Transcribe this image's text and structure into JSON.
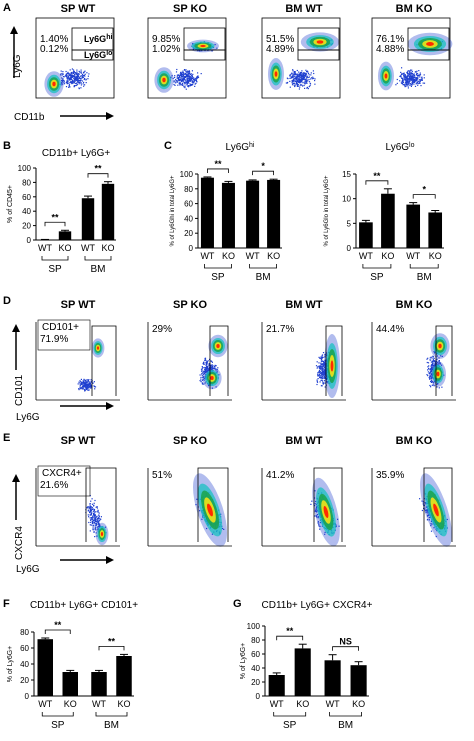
{
  "panels": {
    "A": "A",
    "B": "B",
    "C": "C",
    "D": "D",
    "E": "E",
    "F": "F",
    "G": "G"
  },
  "facs_titles": [
    "SP WT",
    "SP KO",
    "BM WT",
    "BM KO"
  ],
  "row_a": {
    "y_axis": "Ly6G",
    "x_axis": "CD11b",
    "gate_hi": "Ly6G",
    "gate_hi_sup": "hi",
    "gate_lo": "Ly6G",
    "gate_lo_sup": "lo",
    "hi": [
      "1.40%",
      "9.85%",
      "51.5%",
      "76.1%"
    ],
    "lo": [
      "0.12%",
      "1.02%",
      "4.89%",
      "4.88%"
    ]
  },
  "row_d": {
    "y_axis": "CD101",
    "x_axis": "Ly6G",
    "gate_label": "CD101+",
    "pcts": [
      "71.9%",
      "29%",
      "21.7%",
      "44.4%"
    ]
  },
  "row_e": {
    "y_axis": "CXCR4",
    "x_axis": "Ly6G",
    "gate_label": "CXCR4+",
    "pcts": [
      "21.6%",
      "51%",
      "41.2%",
      "35.9%"
    ]
  },
  "colors": {
    "bar": "#000000",
    "dense": "#ff2a00",
    "mid": "#1aa34a",
    "sparse": "#1f3fcf"
  },
  "chart_data": [
    {
      "id": "B",
      "type": "bar",
      "title": "CD11b+ Ly6G+",
      "ylabel": "% of CD45+",
      "categories": [
        "WT",
        "KO",
        "WT",
        "KO"
      ],
      "groups": [
        "SP",
        "BM"
      ],
      "values": [
        0.5,
        12,
        58,
        78
      ],
      "errors": [
        0.3,
        1.5,
        3,
        3
      ],
      "ylim": [
        0,
        100
      ],
      "yticks": [
        "0",
        "20",
        "40",
        "60",
        "80",
        "100"
      ],
      "sig": [
        "**",
        "**"
      ]
    },
    {
      "id": "C1",
      "type": "bar",
      "title": "Ly6G",
      "title_sup": "hi",
      "ylabel": "% of Ly6Ghi in total Ly6G+",
      "categories": [
        "WT",
        "KO",
        "WT",
        "KO"
      ],
      "groups": [
        "SP",
        "BM"
      ],
      "values": [
        95,
        88,
        91,
        92
      ],
      "errors": [
        1,
        2,
        1,
        1
      ],
      "ylim": [
        0,
        100
      ],
      "yticks": [
        "0",
        "20",
        "40",
        "60",
        "80",
        "100"
      ],
      "sig": [
        "**",
        "*"
      ]
    },
    {
      "id": "C2",
      "type": "bar",
      "title": "Ly6G",
      "title_sup": "lo",
      "ylabel": "% of Ly6Glo in total Ly6G+",
      "categories": [
        "WT",
        "KO",
        "WT",
        "KO"
      ],
      "groups": [
        "SP",
        "BM"
      ],
      "values": [
        5.2,
        11,
        8.8,
        7.2
      ],
      "errors": [
        0.4,
        1,
        0.4,
        0.4
      ],
      "ylim": [
        0,
        15
      ],
      "yticks": [
        "0",
        "5",
        "10",
        "15"
      ],
      "sig": [
        "**",
        "*"
      ]
    },
    {
      "id": "F",
      "type": "bar",
      "title": "CD11b+ Ly6G+ CD101+",
      "ylabel": "% of Ly6G+",
      "categories": [
        "WT",
        "KO",
        "WT",
        "KO"
      ],
      "groups": [
        "SP",
        "BM"
      ],
      "values": [
        71,
        30,
        30,
        50
      ],
      "errors": [
        1.5,
        2,
        2,
        2
      ],
      "ylim": [
        0,
        80
      ],
      "yticks": [
        "0",
        "20",
        "40",
        "60",
        "80"
      ],
      "sig": [
        "**",
        "**"
      ]
    },
    {
      "id": "G",
      "type": "bar",
      "title": "CD11b+ Ly6G+ CXCR4+",
      "ylabel": "% of Ly6G+",
      "categories": [
        "WT",
        "KO",
        "WT",
        "KO"
      ],
      "groups": [
        "SP",
        "BM"
      ],
      "values": [
        30,
        68,
        51,
        44
      ],
      "errors": [
        3,
        6,
        8,
        5
      ],
      "ylim": [
        0,
        100
      ],
      "yticks": [
        "0",
        "20",
        "40",
        "60",
        "80",
        "100"
      ],
      "sig": [
        "**",
        "NS"
      ]
    }
  ]
}
